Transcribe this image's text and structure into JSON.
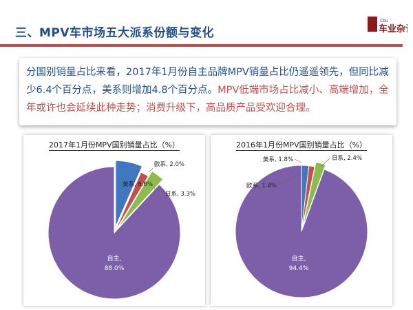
{
  "header": {
    "title": "三、MPV车市场五大派系份额与变化",
    "logo_line1": "Cbu",
    "logo_text": "车业杂谈"
  },
  "callout": {
    "text_blue": "分国别销量占比来看，2017年1月份自主品牌MPV销量占比仍遥遥领先，但同比减少6.4个百分点，美系则增加4.8个百分点。",
    "text_red": "MPV低端市场占比减小、高端增加，全年或许也会延续此种走势；消费升级下，高品质产品受欢迎合理。"
  },
  "colors": {
    "purple": "#7c5fa8",
    "blue": "#3f77c0",
    "red": "#c0504d",
    "green": "#8dbb4c",
    "title_blue": "#1f4e8c"
  },
  "chart_data": [
    {
      "type": "pie",
      "title": "2017年1月份MPV国别销量占比（%）",
      "series": [
        {
          "label": "自主",
          "value": 88.0,
          "display": "88.0%",
          "color": "#7c5fa8"
        },
        {
          "label": "美系",
          "value": 6.6,
          "display": "6.6%",
          "color": "#3f77c0"
        },
        {
          "label": "欧系",
          "value": 2.0,
          "display": "2.0%",
          "color": "#c0504d"
        },
        {
          "label": "日系",
          "value": 3.3,
          "display": "3.3%",
          "color": "#8dbb4c"
        }
      ]
    },
    {
      "type": "pie",
      "title": "2016年1月份MPV国别销量占比（%）",
      "series": [
        {
          "label": "自主",
          "value": 94.4,
          "display": "94.4%",
          "color": "#7c5fa8"
        },
        {
          "label": "美系",
          "value": 1.8,
          "display": "1.8%",
          "color": "#3f77c0"
        },
        {
          "label": "欧系",
          "value": 1.4,
          "display": "1.4%",
          "color": "#c0504d"
        },
        {
          "label": "日系",
          "value": 2.4,
          "display": "2.4%",
          "color": "#8dbb4c"
        }
      ]
    }
  ]
}
